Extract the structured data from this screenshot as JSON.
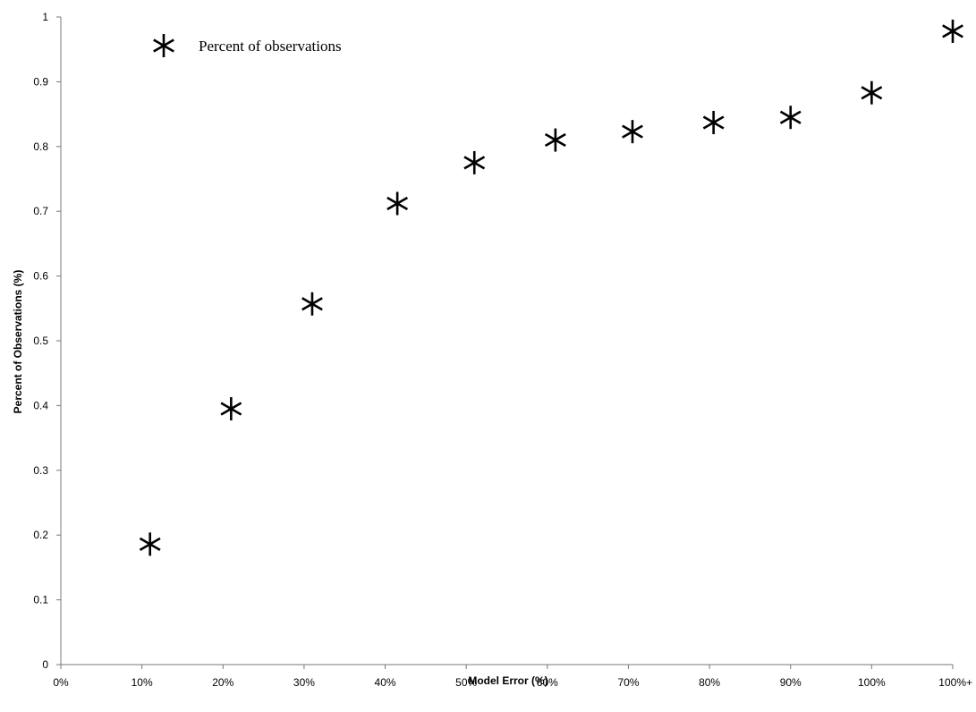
{
  "chart_data": {
    "type": "scatter",
    "title": "",
    "xlabel": "Model Error (%)",
    "ylabel": "Percent of Observations (%)",
    "x_tick_labels": [
      "0%",
      "10%",
      "20%",
      "30%",
      "40%",
      "50%",
      "60%",
      "70%",
      "80%",
      "90%",
      "100%",
      "100%+"
    ],
    "y_tick_labels": [
      "0",
      "0.1",
      "0.2",
      "0.3",
      "0.4",
      "0.5",
      "0.6",
      "0.7",
      "0.8",
      "0.9",
      "1"
    ],
    "xlim": [
      0,
      1.1
    ],
    "ylim": [
      0,
      1
    ],
    "grid": false,
    "legend_position": "top-left",
    "marker": "asterisk",
    "series": [
      {
        "name": "Percent of observations",
        "color": "#000000",
        "x": [
          0.11,
          0.21,
          0.31,
          0.415,
          0.51,
          0.61,
          0.705,
          0.805,
          0.9,
          1.0,
          1.1
        ],
        "y": [
          0.186,
          0.395,
          0.557,
          0.712,
          0.775,
          0.81,
          0.823,
          0.837,
          0.845,
          0.883,
          0.978
        ]
      }
    ]
  }
}
